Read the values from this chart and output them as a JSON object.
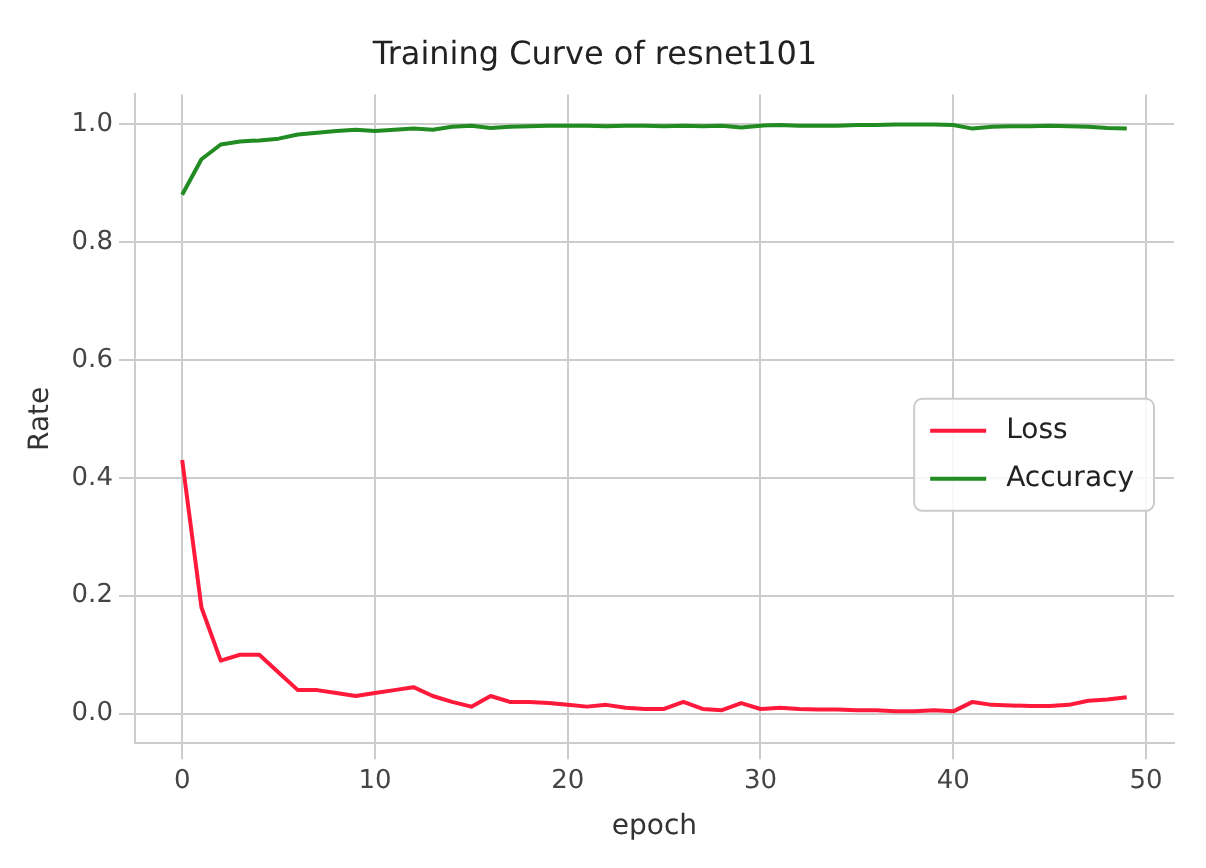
{
  "chart_data": {
    "type": "line",
    "title": "Training Curve of resnet101",
    "xlabel": "epoch",
    "ylabel": "Rate",
    "x": [
      0,
      1,
      2,
      3,
      4,
      5,
      6,
      7,
      8,
      9,
      10,
      11,
      12,
      13,
      14,
      15,
      16,
      17,
      18,
      19,
      20,
      21,
      22,
      23,
      24,
      25,
      26,
      27,
      28,
      29,
      30,
      31,
      32,
      33,
      34,
      35,
      36,
      37,
      38,
      39,
      40,
      41,
      42,
      43,
      44,
      45,
      46,
      47,
      48,
      49
    ],
    "series": [
      {
        "name": "Loss",
        "color": "#ff1a3c",
        "values": [
          0.43,
          0.18,
          0.09,
          0.1,
          0.1,
          0.07,
          0.04,
          0.04,
          0.035,
          0.03,
          0.035,
          0.04,
          0.045,
          0.03,
          0.02,
          0.012,
          0.03,
          0.02,
          0.02,
          0.018,
          0.015,
          0.012,
          0.015,
          0.01,
          0.008,
          0.008,
          0.02,
          0.008,
          0.006,
          0.018,
          0.008,
          0.01,
          0.008,
          0.007,
          0.007,
          0.006,
          0.006,
          0.004,
          0.004,
          0.006,
          0.004,
          0.02,
          0.015,
          0.014,
          0.013,
          0.013,
          0.015,
          0.022,
          0.024,
          0.028
        ]
      },
      {
        "name": "Accuracy",
        "color": "#228b22",
        "values": [
          0.88,
          0.94,
          0.965,
          0.97,
          0.972,
          0.975,
          0.982,
          0.985,
          0.988,
          0.99,
          0.988,
          0.99,
          0.992,
          0.99,
          0.995,
          0.997,
          0.993,
          0.995,
          0.996,
          0.997,
          0.997,
          0.997,
          0.996,
          0.997,
          0.997,
          0.996,
          0.997,
          0.996,
          0.997,
          0.994,
          0.997,
          0.998,
          0.997,
          0.997,
          0.997,
          0.998,
          0.998,
          0.999,
          0.999,
          0.999,
          0.998,
          0.992,
          0.995,
          0.996,
          0.996,
          0.997,
          0.996,
          0.995,
          0.993,
          0.992
        ]
      }
    ],
    "xlim": [
      -2.45,
      51.45
    ],
    "xticks": [
      0,
      10,
      20,
      30,
      40,
      50
    ],
    "ylim": [
      -0.05,
      1.05
    ],
    "yticks": [
      {
        "value": 0,
        "label": "0.0"
      },
      {
        "value": 0.2,
        "label": "0.2"
      },
      {
        "value": 0.4,
        "label": "0.4"
      },
      {
        "value": 0.6,
        "label": "0.6"
      },
      {
        "value": 0.8,
        "label": "0.8"
      },
      {
        "value": 1,
        "label": "1.0"
      }
    ],
    "grid": true,
    "legend": "right",
    "marker": "none",
    "line_style": "solid"
  }
}
